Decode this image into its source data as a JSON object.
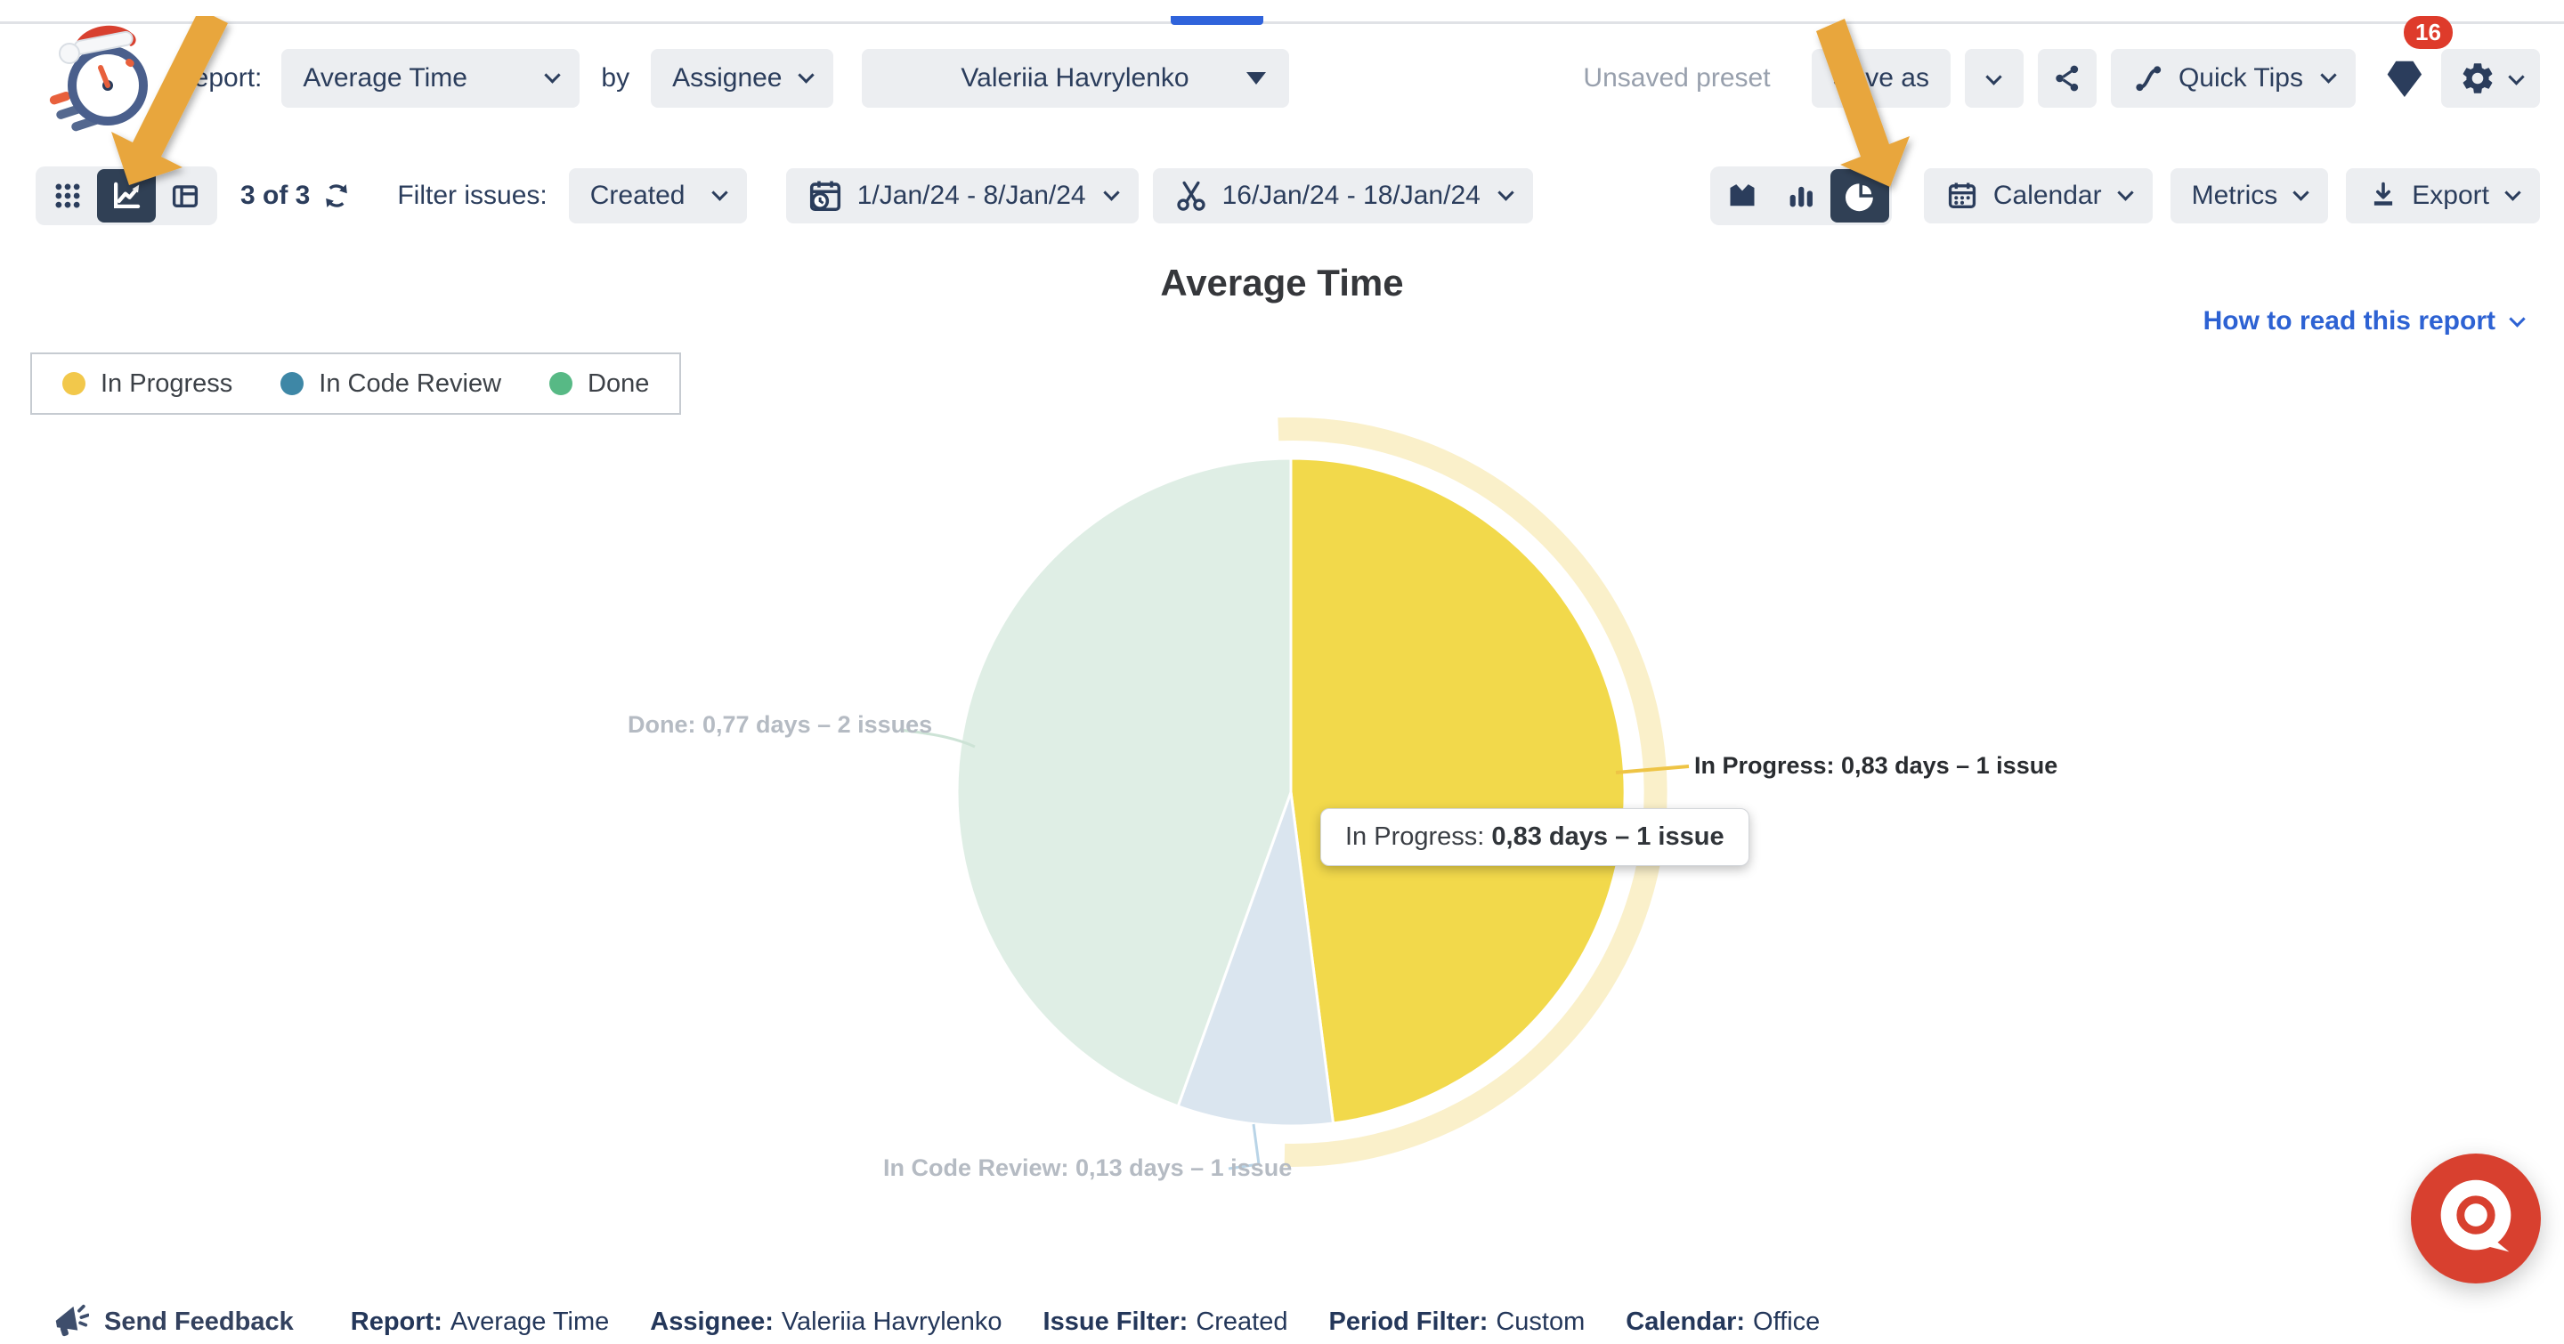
{
  "colors": {
    "accent_blue": "#2F63DB",
    "navy_text": "#2B3D5C",
    "badge_red": "#DE3B2B",
    "annotation_arrow_orange": "#E8A63C",
    "chat_widget_red": "#D8402F",
    "selected_segment_navy": "#304055",
    "link_blue": "#2D62D3"
  },
  "icons": {
    "app-logo": "clock-with-santa-hat",
    "grid-view": "dots-grid",
    "chart-view": "line-chart-arrow",
    "table-view": "table",
    "refresh": "circular-arrows",
    "created-range": "calendar-clock",
    "trim-range": "scissors",
    "area-chart": "area",
    "bar-chart": "bars",
    "pie-chart": "pie",
    "calendar": "calendar-grid",
    "export": "download-arrow",
    "share": "share-nodes",
    "quick-tips": "route-path",
    "presets": "tag",
    "settings": "gear",
    "feedback": "megaphone",
    "chat-widget": "speech-bubble-target",
    "dropdown": "chevron-down"
  },
  "header": {
    "report_label": "Report:",
    "report_value": "Average Time",
    "by_label": "by",
    "group_by_value": "Assignee",
    "assignee_value": "Valeriia Havrylenko",
    "unsaved_preset_label": "Unsaved preset",
    "save_as_label": "Save as",
    "quick_tips_label": "Quick Tips",
    "notification_count": "16"
  },
  "filter_bar": {
    "count_text": "3 of 3",
    "filter_issues_label": "Filter issues:",
    "issue_filter_value": "Created",
    "created_range": "1/Jan/24 - 8/Jan/24",
    "trim_range": "16/Jan/24 - 18/Jan/24",
    "calendar_label": "Calendar",
    "metrics_label": "Metrics",
    "export_label": "Export"
  },
  "report": {
    "title": "Average Time",
    "how_to_read_label": "How to read this report",
    "legend": [
      {
        "label": "In Progress",
        "color": "#F2C84B"
      },
      {
        "label": "In Code Review",
        "color": "#3E87A6"
      },
      {
        "label": "Done",
        "color": "#57B985"
      }
    ],
    "tooltip": {
      "prefix": "In Progress: ",
      "value": "0,83 days – 1 issue"
    }
  },
  "chart_data": {
    "type": "pie",
    "title": "Average Time",
    "value_unit": "average days in status",
    "start_angle_deg": 0,
    "clockwise": true,
    "series": [
      {
        "name": "In Progress",
        "avg_days": 0.83,
        "issues": 1,
        "share_pct": 48.0,
        "slice_color": "#F2D94B",
        "highlighted": true,
        "label": "In Progress: 0,83 days – 1 issue"
      },
      {
        "name": "In Code Review",
        "avg_days": 0.13,
        "issues": 1,
        "share_pct": 7.5,
        "slice_color": "#DAE5EF",
        "highlighted": false,
        "label": "In Code Review: 0,13 days – 1 issue"
      },
      {
        "name": "Done",
        "avg_days": 0.77,
        "issues": 2,
        "share_pct": 44.5,
        "slice_color": "#DFEEE5",
        "highlighted": false,
        "label": "Done: 0,77 days – 2 issues"
      }
    ]
  },
  "footer": {
    "send_feedback_label": "Send Feedback",
    "items": [
      {
        "label": "Report:",
        "value": "Average Time"
      },
      {
        "label": "Assignee:",
        "value": "Valeriia Havrylenko"
      },
      {
        "label": "Issue Filter:",
        "value": "Created"
      },
      {
        "label": "Period Filter:",
        "value": "Custom"
      },
      {
        "label": "Calendar:",
        "value": "Office"
      }
    ]
  }
}
